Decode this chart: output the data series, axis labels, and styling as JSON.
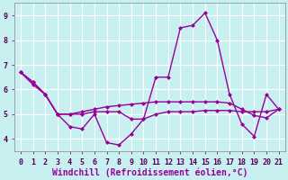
{
  "xlabel": "Windchill (Refroidissement éolien,°C)",
  "background_color": "#c8f0f0",
  "line_color": "#990099",
  "grid_color": "#ffffff",
  "xlim": [
    -0.5,
    21.5
  ],
  "ylim": [
    3.5,
    9.5
  ],
  "xticks": [
    0,
    1,
    2,
    3,
    4,
    5,
    6,
    7,
    8,
    9,
    10,
    11,
    12,
    13,
    14,
    15,
    16,
    17,
    18,
    19,
    20,
    21
  ],
  "yticks": [
    4,
    5,
    6,
    7,
    8,
    9
  ],
  "line1_x": [
    0,
    1,
    2,
    3,
    4,
    5,
    6,
    7,
    8,
    9,
    10,
    11,
    12,
    13,
    14,
    15,
    16,
    17,
    18,
    19,
    20,
    21
  ],
  "line1_y": [
    6.7,
    6.3,
    5.8,
    5.0,
    5.0,
    5.0,
    5.1,
    5.1,
    5.1,
    4.8,
    4.8,
    5.0,
    5.1,
    5.1,
    5.1,
    5.15,
    5.15,
    5.15,
    5.1,
    5.1,
    5.1,
    5.2
  ],
  "line2_x": [
    0,
    1,
    2,
    3,
    4,
    5,
    6,
    7,
    8,
    9,
    10,
    11,
    12,
    13,
    14,
    15,
    16,
    17,
    18,
    19,
    20,
    21
  ],
  "line2_y": [
    6.7,
    6.3,
    5.8,
    5.0,
    4.5,
    4.4,
    5.0,
    3.85,
    3.75,
    4.2,
    4.8,
    6.5,
    6.5,
    8.5,
    8.6,
    9.1,
    8.0,
    5.8,
    4.6,
    4.1,
    5.8,
    5.2
  ],
  "line3_x": [
    0,
    1,
    2,
    3,
    4,
    5,
    6,
    7,
    8,
    9,
    10,
    11,
    12,
    13,
    14,
    15,
    16,
    17,
    18,
    19,
    20,
    21
  ],
  "line3_y": [
    6.7,
    6.2,
    5.8,
    5.0,
    5.0,
    5.1,
    5.2,
    5.3,
    5.35,
    5.4,
    5.45,
    5.5,
    5.5,
    5.5,
    5.5,
    5.5,
    5.5,
    5.45,
    5.2,
    4.95,
    4.85,
    5.2
  ],
  "marker": "D",
  "marker_size": 2.5,
  "line_width": 1.0,
  "font_size": 7,
  "tick_fontsize": 6
}
